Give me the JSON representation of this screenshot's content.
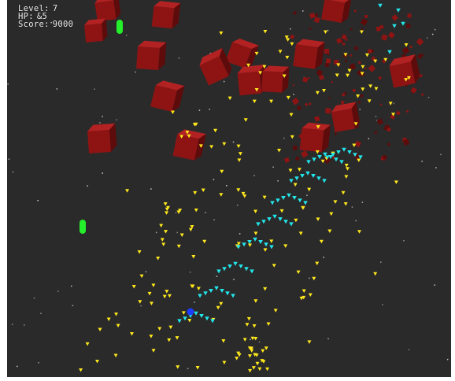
{
  "hud": {
    "level_label": "Level:",
    "level_value": "7",
    "hp_label": "HP:",
    "hp_value": "&5",
    "score_label": "Score:",
    "score_value": "9000"
  },
  "colors": {
    "background": "#2a2a2a",
    "enemy_cube": "#8e1414",
    "enemy_cube_top": "#b22222",
    "enemy_cube_side": "#5e0b0b",
    "yellow_shot": "#ffe81c",
    "cyan_shot": "#22e6ec",
    "powerup_capsule": "#23f02a",
    "player_ship": "#1e3cff",
    "star": "#cfcfcf"
  },
  "icons": {
    "enemy": "red-cube-icon",
    "powerup": "green-capsule-icon",
    "player": "player-ship-icon",
    "bullet_yellow": "yellow-bullet-icon",
    "bullet_cyan": "cyan-bullet-icon",
    "star": "star-dot-icon"
  }
}
